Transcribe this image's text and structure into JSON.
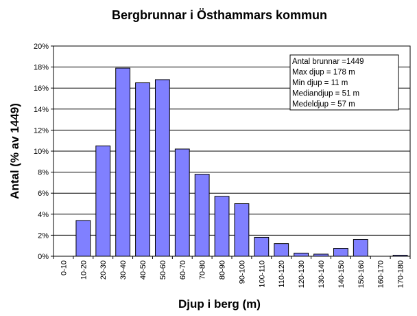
{
  "chart_data": {
    "type": "bar",
    "title": "Bergbrunnar i Östhammars kommun",
    "xlabel": "Djup i berg (m)",
    "ylabel": "Antal (% av 1449)",
    "categories": [
      "0-10",
      "10-20",
      "20-30",
      "30-40",
      "40-50",
      "50-60",
      "60-70",
      "70-80",
      "80-90",
      "90-100",
      "100-110",
      "110-120",
      "120-130",
      "130-140",
      "140-150",
      "150-160",
      "160-170",
      "170-180"
    ],
    "values": [
      0,
      3.4,
      10.5,
      17.9,
      16.5,
      16.8,
      10.2,
      7.8,
      5.7,
      5.0,
      1.8,
      1.2,
      0.3,
      0.2,
      0.75,
      1.6,
      0,
      0.1
    ],
    "ylim": [
      0,
      20
    ],
    "yticks": [
      0,
      2,
      4,
      6,
      8,
      10,
      12,
      14,
      16,
      18,
      20
    ],
    "ytick_labels": [
      "0%",
      "2%",
      "4%",
      "6%",
      "8%",
      "10%",
      "12%",
      "14%",
      "16%",
      "18%",
      "20%"
    ],
    "grid": "horizontal",
    "annotation_lines": [
      "Antal brunnar  =1449",
      "Max djup = 178  m",
      "Min djup = 11  m",
      "Mediandjup =  51 m",
      "Medeldjup = 57 m"
    ],
    "colors": {
      "bar": "#8080FF",
      "bar_edge": "#000000",
      "grid": "#000000",
      "plot_bg": "#FFFFFF"
    }
  }
}
